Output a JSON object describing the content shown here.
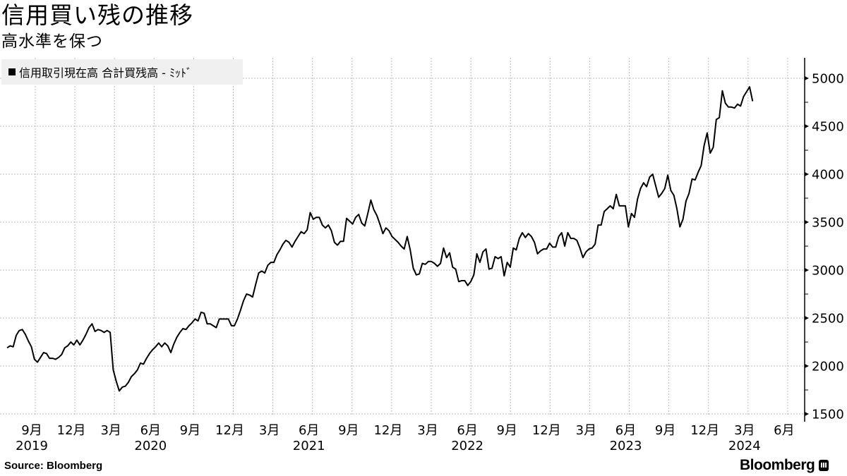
{
  "header": {
    "title": "信用買い残の推移",
    "subtitle": "高水準を保つ"
  },
  "legend": {
    "label": "信用取引現在高 合計買残高 - ﾐｯﾄﾞ",
    "color": "#000000"
  },
  "footer": {
    "source": "Source:  Bloomberg",
    "brand": "Bloomberg"
  },
  "chart_data": {
    "type": "line",
    "title": "信用買い残の推移",
    "subtitle": "高水準を保つ",
    "xlabel": "",
    "ylabel": "",
    "ylim": [
      1500,
      5200
    ],
    "yticks": [
      1500,
      2000,
      2500,
      3000,
      3500,
      4000,
      4500,
      5000
    ],
    "grid": true,
    "legend_position": "top-left",
    "x_tick_labels": [
      {
        "month": "9月",
        "year": "2019"
      },
      {
        "month": "12月",
        "year": ""
      },
      {
        "month": "3月",
        "year": ""
      },
      {
        "month": "6月",
        "year": "2020"
      },
      {
        "month": "9月",
        "year": ""
      },
      {
        "month": "12月",
        "year": ""
      },
      {
        "month": "3月",
        "year": ""
      },
      {
        "month": "6月",
        "year": "2021"
      },
      {
        "month": "9月",
        "year": ""
      },
      {
        "month": "12月",
        "year": ""
      },
      {
        "month": "3月",
        "year": ""
      },
      {
        "month": "6月",
        "year": "2022"
      },
      {
        "month": "9月",
        "year": ""
      },
      {
        "month": "12月",
        "year": ""
      },
      {
        "month": "3月",
        "year": ""
      },
      {
        "month": "6月",
        "year": "2023"
      },
      {
        "month": "9月",
        "year": ""
      },
      {
        "month": "12月",
        "year": ""
      },
      {
        "month": "3月",
        "year": "2024"
      },
      {
        "month": "6月",
        "year": ""
      }
    ],
    "series": [
      {
        "name": "信用取引現在高 合計買残高 - ﾐｯﾄﾞ",
        "color": "#000000",
        "points": [
          [
            "2019-06-28",
            2190
          ],
          [
            "2019-07-05",
            2210
          ],
          [
            "2019-07-12",
            2200
          ],
          [
            "2019-07-19",
            2320
          ],
          [
            "2019-07-26",
            2370
          ],
          [
            "2019-08-02",
            2380
          ],
          [
            "2019-08-09",
            2330
          ],
          [
            "2019-08-16",
            2260
          ],
          [
            "2019-08-23",
            2200
          ],
          [
            "2019-08-30",
            2070
          ],
          [
            "2019-09-06",
            2040
          ],
          [
            "2019-09-13",
            2090
          ],
          [
            "2019-09-20",
            2140
          ],
          [
            "2019-09-27",
            2130
          ],
          [
            "2019-10-04",
            2080
          ],
          [
            "2019-10-11",
            2080
          ],
          [
            "2019-10-18",
            2070
          ],
          [
            "2019-10-25",
            2090
          ],
          [
            "2019-11-01",
            2120
          ],
          [
            "2019-11-08",
            2190
          ],
          [
            "2019-11-15",
            2210
          ],
          [
            "2019-11-22",
            2250
          ],
          [
            "2019-11-29",
            2220
          ],
          [
            "2019-12-06",
            2270
          ],
          [
            "2019-12-13",
            2220
          ],
          [
            "2019-12-20",
            2270
          ],
          [
            "2019-12-27",
            2330
          ],
          [
            "2020-01-03",
            2400
          ],
          [
            "2020-01-10",
            2440
          ],
          [
            "2020-01-17",
            2360
          ],
          [
            "2020-01-24",
            2380
          ],
          [
            "2020-01-31",
            2370
          ],
          [
            "2020-02-07",
            2350
          ],
          [
            "2020-02-14",
            2370
          ],
          [
            "2020-02-21",
            2350
          ],
          [
            "2020-02-28",
            1960
          ],
          [
            "2020-03-06",
            1840
          ],
          [
            "2020-03-13",
            1740
          ],
          [
            "2020-03-20",
            1780
          ],
          [
            "2020-03-27",
            1790
          ],
          [
            "2020-04-03",
            1830
          ],
          [
            "2020-04-10",
            1890
          ],
          [
            "2020-04-17",
            1920
          ],
          [
            "2020-04-24",
            1960
          ],
          [
            "2020-05-01",
            2030
          ],
          [
            "2020-05-08",
            2020
          ],
          [
            "2020-05-15",
            2080
          ],
          [
            "2020-05-22",
            2130
          ],
          [
            "2020-05-29",
            2170
          ],
          [
            "2020-06-05",
            2200
          ],
          [
            "2020-06-12",
            2240
          ],
          [
            "2020-06-19",
            2200
          ],
          [
            "2020-06-26",
            2240
          ],
          [
            "2020-07-03",
            2210
          ],
          [
            "2020-07-10",
            2140
          ],
          [
            "2020-07-17",
            2230
          ],
          [
            "2020-07-24",
            2300
          ],
          [
            "2020-07-31",
            2350
          ],
          [
            "2020-08-07",
            2390
          ],
          [
            "2020-08-14",
            2380
          ],
          [
            "2020-08-21",
            2420
          ],
          [
            "2020-08-28",
            2450
          ],
          [
            "2020-09-04",
            2490
          ],
          [
            "2020-09-11",
            2470
          ],
          [
            "2020-09-18",
            2560
          ],
          [
            "2020-09-25",
            2550
          ],
          [
            "2020-10-02",
            2440
          ],
          [
            "2020-10-09",
            2440
          ],
          [
            "2020-10-16",
            2420
          ],
          [
            "2020-10-23",
            2400
          ],
          [
            "2020-10-30",
            2490
          ],
          [
            "2020-11-06",
            2490
          ],
          [
            "2020-11-13",
            2490
          ],
          [
            "2020-11-20",
            2490
          ],
          [
            "2020-11-27",
            2420
          ],
          [
            "2020-12-04",
            2420
          ],
          [
            "2020-12-11",
            2490
          ],
          [
            "2020-12-18",
            2580
          ],
          [
            "2020-12-25",
            2680
          ],
          [
            "2021-01-01",
            2750
          ],
          [
            "2021-01-08",
            2740
          ],
          [
            "2021-01-15",
            2720
          ],
          [
            "2021-01-22",
            2850
          ],
          [
            "2021-01-29",
            2970
          ],
          [
            "2021-02-05",
            2990
          ],
          [
            "2021-02-12",
            2970
          ],
          [
            "2021-02-19",
            3050
          ],
          [
            "2021-02-26",
            3080
          ],
          [
            "2021-03-05",
            3080
          ],
          [
            "2021-03-12",
            3160
          ],
          [
            "2021-03-19",
            3210
          ],
          [
            "2021-03-26",
            3270
          ],
          [
            "2021-04-02",
            3310
          ],
          [
            "2021-04-09",
            3290
          ],
          [
            "2021-04-16",
            3240
          ],
          [
            "2021-04-23",
            3300
          ],
          [
            "2021-04-30",
            3350
          ],
          [
            "2021-05-07",
            3400
          ],
          [
            "2021-05-14",
            3380
          ],
          [
            "2021-05-21",
            3420
          ],
          [
            "2021-05-28",
            3600
          ],
          [
            "2021-06-04",
            3530
          ],
          [
            "2021-06-11",
            3550
          ],
          [
            "2021-06-18",
            3550
          ],
          [
            "2021-06-25",
            3470
          ],
          [
            "2021-07-02",
            3440
          ],
          [
            "2021-07-09",
            3470
          ],
          [
            "2021-07-16",
            3410
          ],
          [
            "2021-07-23",
            3290
          ],
          [
            "2021-07-30",
            3260
          ],
          [
            "2021-08-06",
            3300
          ],
          [
            "2021-08-13",
            3300
          ],
          [
            "2021-08-20",
            3540
          ],
          [
            "2021-08-27",
            3510
          ],
          [
            "2021-09-03",
            3480
          ],
          [
            "2021-09-10",
            3550
          ],
          [
            "2021-09-17",
            3580
          ],
          [
            "2021-09-24",
            3490
          ],
          [
            "2021-10-01",
            3460
          ],
          [
            "2021-10-08",
            3590
          ],
          [
            "2021-10-15",
            3730
          ],
          [
            "2021-10-22",
            3630
          ],
          [
            "2021-10-29",
            3570
          ],
          [
            "2021-11-05",
            3480
          ],
          [
            "2021-11-12",
            3380
          ],
          [
            "2021-11-19",
            3440
          ],
          [
            "2021-11-26",
            3410
          ],
          [
            "2021-12-03",
            3350
          ],
          [
            "2021-12-10",
            3320
          ],
          [
            "2021-12-17",
            3290
          ],
          [
            "2021-12-24",
            3250
          ],
          [
            "2021-12-31",
            3220
          ],
          [
            "2022-01-07",
            3350
          ],
          [
            "2022-01-14",
            3210
          ],
          [
            "2022-01-21",
            3020
          ],
          [
            "2022-01-28",
            2950
          ],
          [
            "2022-02-04",
            2960
          ],
          [
            "2022-02-11",
            3070
          ],
          [
            "2022-02-18",
            3060
          ],
          [
            "2022-02-25",
            3090
          ],
          [
            "2022-03-04",
            3090
          ],
          [
            "2022-03-11",
            3070
          ],
          [
            "2022-03-18",
            3040
          ],
          [
            "2022-03-25",
            3070
          ],
          [
            "2022-04-01",
            3230
          ],
          [
            "2022-04-08",
            3130
          ],
          [
            "2022-04-15",
            3180
          ],
          [
            "2022-04-22",
            3030
          ],
          [
            "2022-04-29",
            3010
          ],
          [
            "2022-05-06",
            2880
          ],
          [
            "2022-05-13",
            2890
          ],
          [
            "2022-05-20",
            2890
          ],
          [
            "2022-05-27",
            2840
          ],
          [
            "2022-06-03",
            2880
          ],
          [
            "2022-06-10",
            2950
          ],
          [
            "2022-06-17",
            3170
          ],
          [
            "2022-06-24",
            3080
          ],
          [
            "2022-07-01",
            3190
          ],
          [
            "2022-07-08",
            3220
          ],
          [
            "2022-07-15",
            3010
          ],
          [
            "2022-07-22",
            3020
          ],
          [
            "2022-07-29",
            3140
          ],
          [
            "2022-08-05",
            3120
          ],
          [
            "2022-08-12",
            3140
          ],
          [
            "2022-08-19",
            2940
          ],
          [
            "2022-08-26",
            3080
          ],
          [
            "2022-09-02",
            3030
          ],
          [
            "2022-09-09",
            3230
          ],
          [
            "2022-09-16",
            3210
          ],
          [
            "2022-09-23",
            3330
          ],
          [
            "2022-09-30",
            3390
          ],
          [
            "2022-10-07",
            3340
          ],
          [
            "2022-10-14",
            3380
          ],
          [
            "2022-10-21",
            3350
          ],
          [
            "2022-10-28",
            3290
          ],
          [
            "2022-11-04",
            3170
          ],
          [
            "2022-11-11",
            3200
          ],
          [
            "2022-11-18",
            3220
          ],
          [
            "2022-11-25",
            3220
          ],
          [
            "2022-12-02",
            3280
          ],
          [
            "2022-12-09",
            3240
          ],
          [
            "2022-12-16",
            3240
          ],
          [
            "2022-12-23",
            3350
          ],
          [
            "2022-12-30",
            3390
          ],
          [
            "2023-01-06",
            3250
          ],
          [
            "2023-01-13",
            3390
          ],
          [
            "2023-01-20",
            3330
          ],
          [
            "2023-01-27",
            3330
          ],
          [
            "2023-02-03",
            3310
          ],
          [
            "2023-02-10",
            3230
          ],
          [
            "2023-02-17",
            3130
          ],
          [
            "2023-02-24",
            3190
          ],
          [
            "2023-03-03",
            3220
          ],
          [
            "2023-03-10",
            3230
          ],
          [
            "2023-03-17",
            3270
          ],
          [
            "2023-03-24",
            3470
          ],
          [
            "2023-03-31",
            3470
          ],
          [
            "2023-04-07",
            3610
          ],
          [
            "2023-04-14",
            3640
          ],
          [
            "2023-04-21",
            3670
          ],
          [
            "2023-04-28",
            3640
          ],
          [
            "2023-05-05",
            3790
          ],
          [
            "2023-05-12",
            3670
          ],
          [
            "2023-05-19",
            3670
          ],
          [
            "2023-05-26",
            3670
          ],
          [
            "2023-06-02",
            3450
          ],
          [
            "2023-06-09",
            3590
          ],
          [
            "2023-06-16",
            3550
          ],
          [
            "2023-06-23",
            3740
          ],
          [
            "2023-06-30",
            3850
          ],
          [
            "2023-07-07",
            3910
          ],
          [
            "2023-07-14",
            3870
          ],
          [
            "2023-07-21",
            3970
          ],
          [
            "2023-07-28",
            4000
          ],
          [
            "2023-08-04",
            3880
          ],
          [
            "2023-08-11",
            3760
          ],
          [
            "2023-08-18",
            3800
          ],
          [
            "2023-08-25",
            3850
          ],
          [
            "2023-09-01",
            3990
          ],
          [
            "2023-09-08",
            3830
          ],
          [
            "2023-09-15",
            3780
          ],
          [
            "2023-09-22",
            3640
          ],
          [
            "2023-09-29",
            3450
          ],
          [
            "2023-10-06",
            3530
          ],
          [
            "2023-10-13",
            3720
          ],
          [
            "2023-10-20",
            3800
          ],
          [
            "2023-10-27",
            3950
          ],
          [
            "2023-11-03",
            3940
          ],
          [
            "2023-11-10",
            4020
          ],
          [
            "2023-11-17",
            4090
          ],
          [
            "2023-11-24",
            4300
          ],
          [
            "2023-12-01",
            4430
          ],
          [
            "2023-12-08",
            4220
          ],
          [
            "2023-12-15",
            4280
          ],
          [
            "2023-12-22",
            4570
          ],
          [
            "2023-12-29",
            4590
          ],
          [
            "2024-01-05",
            4870
          ],
          [
            "2024-01-12",
            4740
          ],
          [
            "2024-01-19",
            4700
          ],
          [
            "2024-01-26",
            4700
          ],
          [
            "2024-02-02",
            4690
          ],
          [
            "2024-02-09",
            4730
          ],
          [
            "2024-02-16",
            4710
          ],
          [
            "2024-02-23",
            4810
          ],
          [
            "2024-03-01",
            4860
          ],
          [
            "2024-03-08",
            4910
          ],
          [
            "2024-03-15",
            4760
          ]
        ]
      }
    ]
  }
}
